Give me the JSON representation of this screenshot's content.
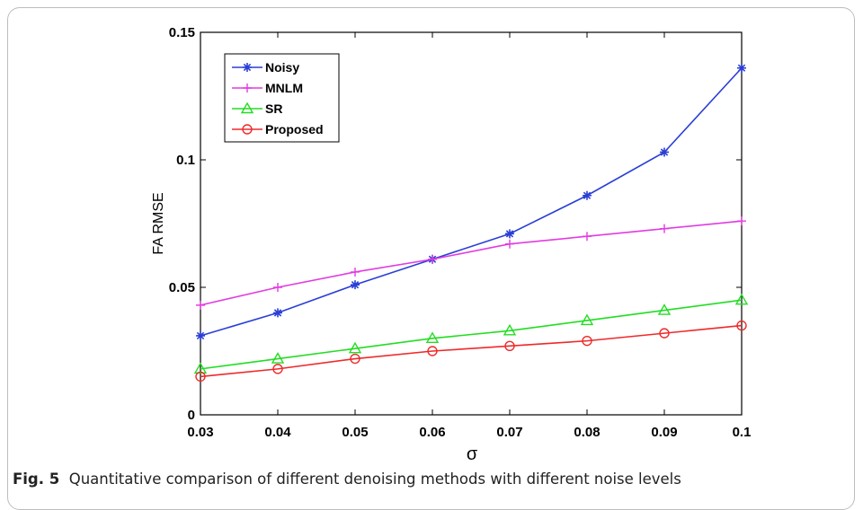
{
  "caption": {
    "label": "Fig. 5",
    "text": "Quantitative comparison of different denoising methods with different noise levels"
  },
  "chart_data": {
    "type": "line",
    "title": "",
    "xlabel": "σ",
    "ylabel": "FA RMSE",
    "xlim": [
      0.03,
      0.1
    ],
    "ylim": [
      0,
      0.15
    ],
    "x": [
      0.03,
      0.04,
      0.05,
      0.06,
      0.07,
      0.08,
      0.09,
      0.1
    ],
    "x_ticks": [
      "0.03",
      "0.04",
      "0.05",
      "0.06",
      "0.07",
      "0.08",
      "0.09",
      "0.1"
    ],
    "y_ticks": [
      {
        "value": 0,
        "label": "0"
      },
      {
        "value": 0.05,
        "label": "0.05"
      },
      {
        "value": 0.1,
        "label": "0.1"
      },
      {
        "value": 0.15,
        "label": "0.15"
      }
    ],
    "grid": false,
    "legend_position": "top-left",
    "series": [
      {
        "name": "Noisy",
        "color": "#2a3fd6",
        "marker": "asterisk",
        "values": [
          0.031,
          0.04,
          0.051,
          0.061,
          0.071,
          0.086,
          0.103,
          0.136
        ]
      },
      {
        "name": "MNLM",
        "color": "#e23be0",
        "marker": "plus",
        "values": [
          0.043,
          0.05,
          0.056,
          0.061,
          0.067,
          0.07,
          0.073,
          0.076
        ]
      },
      {
        "name": "SR",
        "color": "#22dd22",
        "marker": "triangle",
        "values": [
          0.018,
          0.022,
          0.026,
          0.03,
          0.033,
          0.037,
          0.041,
          0.045
        ]
      },
      {
        "name": "Proposed",
        "color": "#ee2a2a",
        "marker": "circle",
        "values": [
          0.015,
          0.018,
          0.022,
          0.025,
          0.027,
          0.029,
          0.032,
          0.035
        ]
      }
    ]
  }
}
